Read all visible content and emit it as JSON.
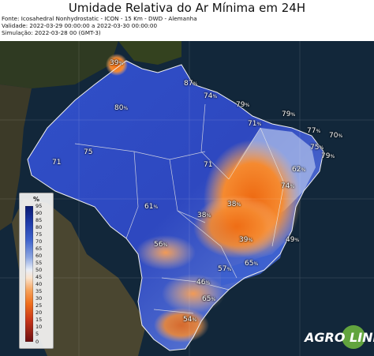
{
  "title": "Umidade Relativa do Ar Mínima em 24H",
  "meta": {
    "fonte": "Fonte: Icosahedral Nonhydrostatic - ICON - 15 Km - DWD - Alemanha",
    "validade": "Validade: 2022-03-29 00:00:00 a 2022-03-30 00:00:00",
    "simulacao": "Simulação: 2022-03-28 00 (GMT-3)"
  },
  "legend": {
    "unit": "%",
    "ticks": [
      "95",
      "90",
      "85",
      "80",
      "75",
      "70",
      "65",
      "60",
      "55",
      "50",
      "45",
      "40",
      "35",
      "30",
      "25",
      "20",
      "15",
      "10",
      "5",
      "0"
    ]
  },
  "labels": [
    {
      "text": "39",
      "unit": "%"
    },
    {
      "text": "87",
      "unit": "%"
    },
    {
      "text": "74",
      "unit": "%"
    },
    {
      "text": "80",
      "unit": "%"
    },
    {
      "text": "79",
      "unit": "%"
    },
    {
      "text": "71",
      "unit": "%"
    },
    {
      "text": "79",
      "unit": "%"
    },
    {
      "text": "77",
      "unit": "%"
    },
    {
      "text": "75",
      "unit": "%"
    },
    {
      "text": "70",
      "unit": "%"
    },
    {
      "text": "79",
      "unit": "%"
    },
    {
      "text": "75",
      "unit": ""
    },
    {
      "text": "71",
      "unit": ""
    },
    {
      "text": "71",
      "unit": ""
    },
    {
      "text": "62",
      "unit": "%"
    },
    {
      "text": "74",
      "unit": "%"
    },
    {
      "text": "61",
      "unit": "%"
    },
    {
      "text": "38",
      "unit": "%"
    },
    {
      "text": "38",
      "unit": "%"
    },
    {
      "text": "56",
      "unit": "%"
    },
    {
      "text": "39",
      "unit": "%"
    },
    {
      "text": "49",
      "unit": "%"
    },
    {
      "text": "57",
      "unit": "%"
    },
    {
      "text": "65",
      "unit": "%"
    },
    {
      "text": "46",
      "unit": "%"
    },
    {
      "text": "65",
      "unit": "%"
    },
    {
      "text": "54",
      "unit": "%"
    }
  ],
  "logo": {
    "text": "AGRO LINK"
  },
  "colors": {
    "ocean": "#0f2233",
    "land_dark": "#2f3a22",
    "humid_blue": "#2d4fc6",
    "dry_orange": "#f07a22"
  }
}
